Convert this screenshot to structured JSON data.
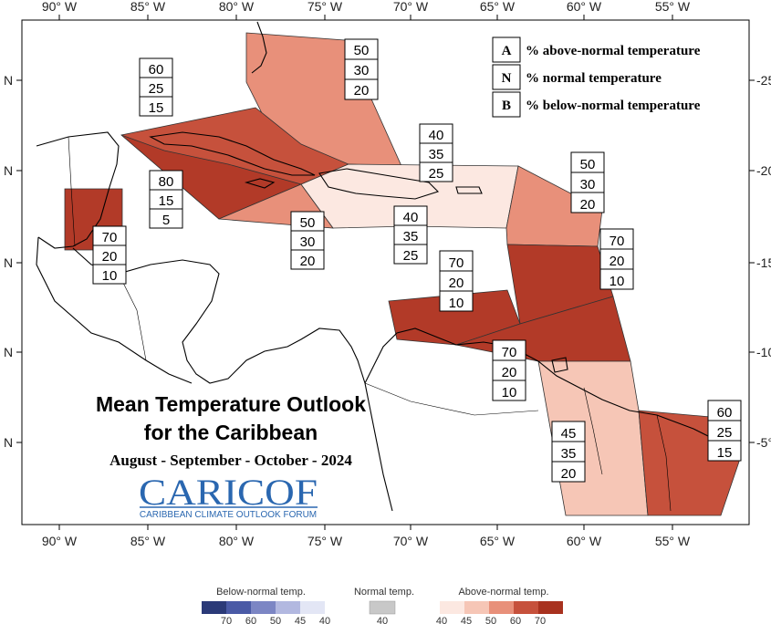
{
  "map": {
    "top_ticks": [
      "90° W",
      "85° W",
      "80° W",
      "75° W",
      "70° W",
      "65° W",
      "60° W",
      "55° W"
    ],
    "bottom_ticks": [
      "90° W",
      "85° W",
      "80° W",
      "75° W",
      "70° W",
      "65° W",
      "60° W",
      "55° W"
    ],
    "left_ticks": [
      "N",
      "N",
      "N",
      "N",
      "N"
    ],
    "right_ticks": [
      "-25",
      "-20",
      "-15",
      "-10",
      "-5°"
    ]
  },
  "legend": {
    "items": [
      {
        "key": "A",
        "label": "% above-normal temperature"
      },
      {
        "key": "N",
        "label": "% normal temperature"
      },
      {
        "key": "B",
        "label": "% below-normal temperature"
      }
    ]
  },
  "title": {
    "line1": "Mean Temperature Outlook",
    "line2": "for the Caribbean",
    "period": "August - September - October - 2024"
  },
  "logo": {
    "text": "CARICOF",
    "subtitle": "CARIBBEAN CLIMATE OUTLOOK FORUM"
  },
  "regions": [
    {
      "id": "bahamas",
      "values": [
        "50",
        "30",
        "20"
      ],
      "color": "#e8907a"
    },
    {
      "id": "cuba",
      "values": [
        "60",
        "25",
        "15"
      ],
      "color": "#c6513c"
    },
    {
      "id": "cayman-jamaica",
      "values": [
        "80",
        "15",
        "5"
      ],
      "color": "#b23a28"
    },
    {
      "id": "jamaica-south",
      "values": [
        "50",
        "30",
        "20"
      ],
      "color": "#e8907a"
    },
    {
      "id": "belize",
      "values": [
        "70",
        "20",
        "10"
      ],
      "color": "#b23a28"
    },
    {
      "id": "hispaniola-pr",
      "values": [
        "40",
        "35",
        "25"
      ],
      "color": "#fce8e1"
    },
    {
      "id": "hispaniola-south",
      "values": [
        "40",
        "35",
        "25"
      ],
      "color": "#fce8e1"
    },
    {
      "id": "leeward",
      "values": [
        "50",
        "30",
        "20"
      ],
      "color": "#e8907a"
    },
    {
      "id": "windward",
      "values": [
        "70",
        "20",
        "10"
      ],
      "color": "#b23a28"
    },
    {
      "id": "abc-islands",
      "values": [
        "70",
        "20",
        "10"
      ],
      "color": "#b23a28"
    },
    {
      "id": "trinidad",
      "values": [
        "70",
        "20",
        "10"
      ],
      "color": "#b23a28"
    },
    {
      "id": "guyana",
      "values": [
        "45",
        "35",
        "20"
      ],
      "color": "#f6c6b6"
    },
    {
      "id": "suriname-fg",
      "values": [
        "60",
        "25",
        "15"
      ],
      "color": "#c6513c"
    }
  ],
  "scale": {
    "below_label": "Below-normal temp.",
    "normal_label": "Normal temp.",
    "above_label": "Above-normal temp.",
    "below_colors": [
      "#2b3a78",
      "#4a5aa6",
      "#7c86c4",
      "#b2b8e0",
      "#e3e6f5"
    ],
    "below_ticks": [
      "70",
      "60",
      "50",
      "45",
      "40"
    ],
    "normal_color": "#c8c8c8",
    "normal_tick": "40",
    "above_colors": [
      "#fce8e1",
      "#f6c6b6",
      "#e8907a",
      "#c6513c",
      "#a8321f"
    ],
    "above_ticks": [
      "40",
      "45",
      "50",
      "60",
      "70"
    ]
  }
}
